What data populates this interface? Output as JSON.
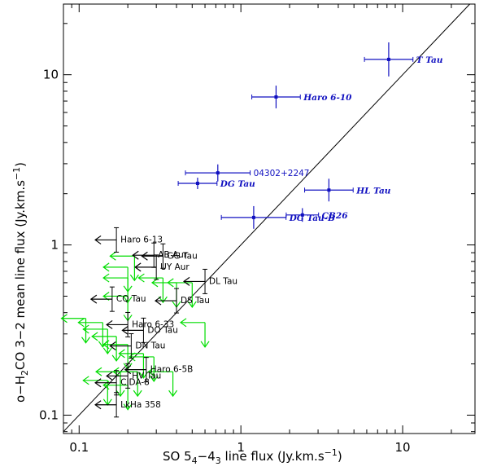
{
  "chart_data": {
    "type": "scatter",
    "title": "",
    "xlabel": "SO 5",
    "xlabel_sub1": "4",
    "xlabel_mid": "−4",
    "xlabel_sub2": "3",
    "xlabel_tail": " line flux (Jy.km.s",
    "xlabel_sup": "−1",
    "xlabel_end": ")",
    "ylabel": "o−H",
    "ylabel_sub": "2",
    "ylabel_tail": "CO 3−2 mean line flux (Jy.km.s",
    "ylabel_sup": "−1",
    "ylabel_end": ")",
    "xscale": "log",
    "yscale": "log",
    "xlim": [
      0.08,
      28
    ],
    "ylim": [
      0.078,
      26
    ],
    "xticks": [
      {
        "v": 0.1,
        "label": "0.1"
      },
      {
        "v": 1,
        "label": "1"
      },
      {
        "v": 10,
        "label": "10"
      }
    ],
    "yticks": [
      {
        "v": 0.1,
        "label": "0.1"
      },
      {
        "v": 1,
        "label": "1"
      },
      {
        "v": 10,
        "label": "10"
      }
    ],
    "reference_line": "y = x",
    "colors": {
      "detection": "#1010c0",
      "upper_limit_h2co": "#000000",
      "upper_limit_both": "#00dd00"
    },
    "detections": [
      {
        "name": "T Tau",
        "x": 8.2,
        "y": 12.3,
        "xerr": 0.15,
        "yerr": 0.3
      },
      {
        "name": "Haro 6-10",
        "x": 1.65,
        "y": 7.4,
        "xerr": 0.15,
        "yerr": 0.2
      },
      {
        "name": "04302+2247",
        "x": 0.72,
        "y": 2.65,
        "xerr": 0.2,
        "yerr": 0.15,
        "style": "plain"
      },
      {
        "name": "DG Tau",
        "x": 0.54,
        "y": 2.3,
        "xerr": 0.12,
        "yerr": 0.1
      },
      {
        "name": "HL Tau",
        "x": 3.5,
        "y": 2.1,
        "xerr": 0.15,
        "yerr": 0.2
      },
      {
        "name": "DG Tau-B",
        "x": 1.2,
        "y": 1.45,
        "xerr": 0.2,
        "yerr": 0.2
      },
      {
        "name": "CB26",
        "x": 2.4,
        "y": 1.5,
        "xerr": 0.1,
        "yerr": 0.12
      }
    ],
    "h2co_upper_limits": [
      {
        "name": "Haro 6-13",
        "x": 0.17,
        "y": 1.07
      },
      {
        "name": "AB Aur",
        "x": 0.29,
        "y": 0.87
      },
      {
        "name": "GG Tau",
        "x": 0.33,
        "y": 0.86
      },
      {
        "name": "UY Aur",
        "x": 0.3,
        "y": 0.74
      },
      {
        "name": "DL Tau",
        "x": 0.6,
        "y": 0.61
      },
      {
        "name": "CQ Tau",
        "x": 0.16,
        "y": 0.48
      },
      {
        "name": "DS Tau",
        "x": 0.4,
        "y": 0.47
      },
      {
        "name": "Haro 6-33",
        "x": 0.2,
        "y": 0.34
      },
      {
        "name": "DO Tau",
        "x": 0.25,
        "y": 0.315
      },
      {
        "name": "DN Tau",
        "x": 0.21,
        "y": 0.255
      },
      {
        "name": "Haro 6-5B",
        "x": 0.26,
        "y": 0.185
      },
      {
        "name": "HV Tau",
        "x": 0.2,
        "y": 0.17
      },
      {
        "name": "CIDA-8",
        "x": 0.17,
        "y": 0.155
      },
      {
        "name": "LkHa 358",
        "x": 0.17,
        "y": 0.115
      }
    ],
    "both_upper_limits": [
      {
        "x": 0.22,
        "y": 0.86
      },
      {
        "x": 0.2,
        "y": 0.74
      },
      {
        "x": 0.2,
        "y": 0.64
      },
      {
        "x": 0.33,
        "y": 0.64
      },
      {
        "x": 0.4,
        "y": 0.6
      },
      {
        "x": 0.5,
        "y": 0.6
      },
      {
        "x": 0.2,
        "y": 0.5
      },
      {
        "x": 0.11,
        "y": 0.37
      },
      {
        "x": 0.14,
        "y": 0.35
      },
      {
        "x": 0.15,
        "y": 0.32
      },
      {
        "x": 0.6,
        "y": 0.35
      },
      {
        "x": 0.17,
        "y": 0.29
      },
      {
        "x": 0.2,
        "y": 0.26
      },
      {
        "x": 0.25,
        "y": 0.23
      },
      {
        "x": 0.29,
        "y": 0.22
      },
      {
        "x": 0.18,
        "y": 0.18
      },
      {
        "x": 0.23,
        "y": 0.18
      },
      {
        "x": 0.38,
        "y": 0.18
      },
      {
        "x": 0.15,
        "y": 0.16
      },
      {
        "x": 0.2,
        "y": 0.15
      }
    ]
  }
}
